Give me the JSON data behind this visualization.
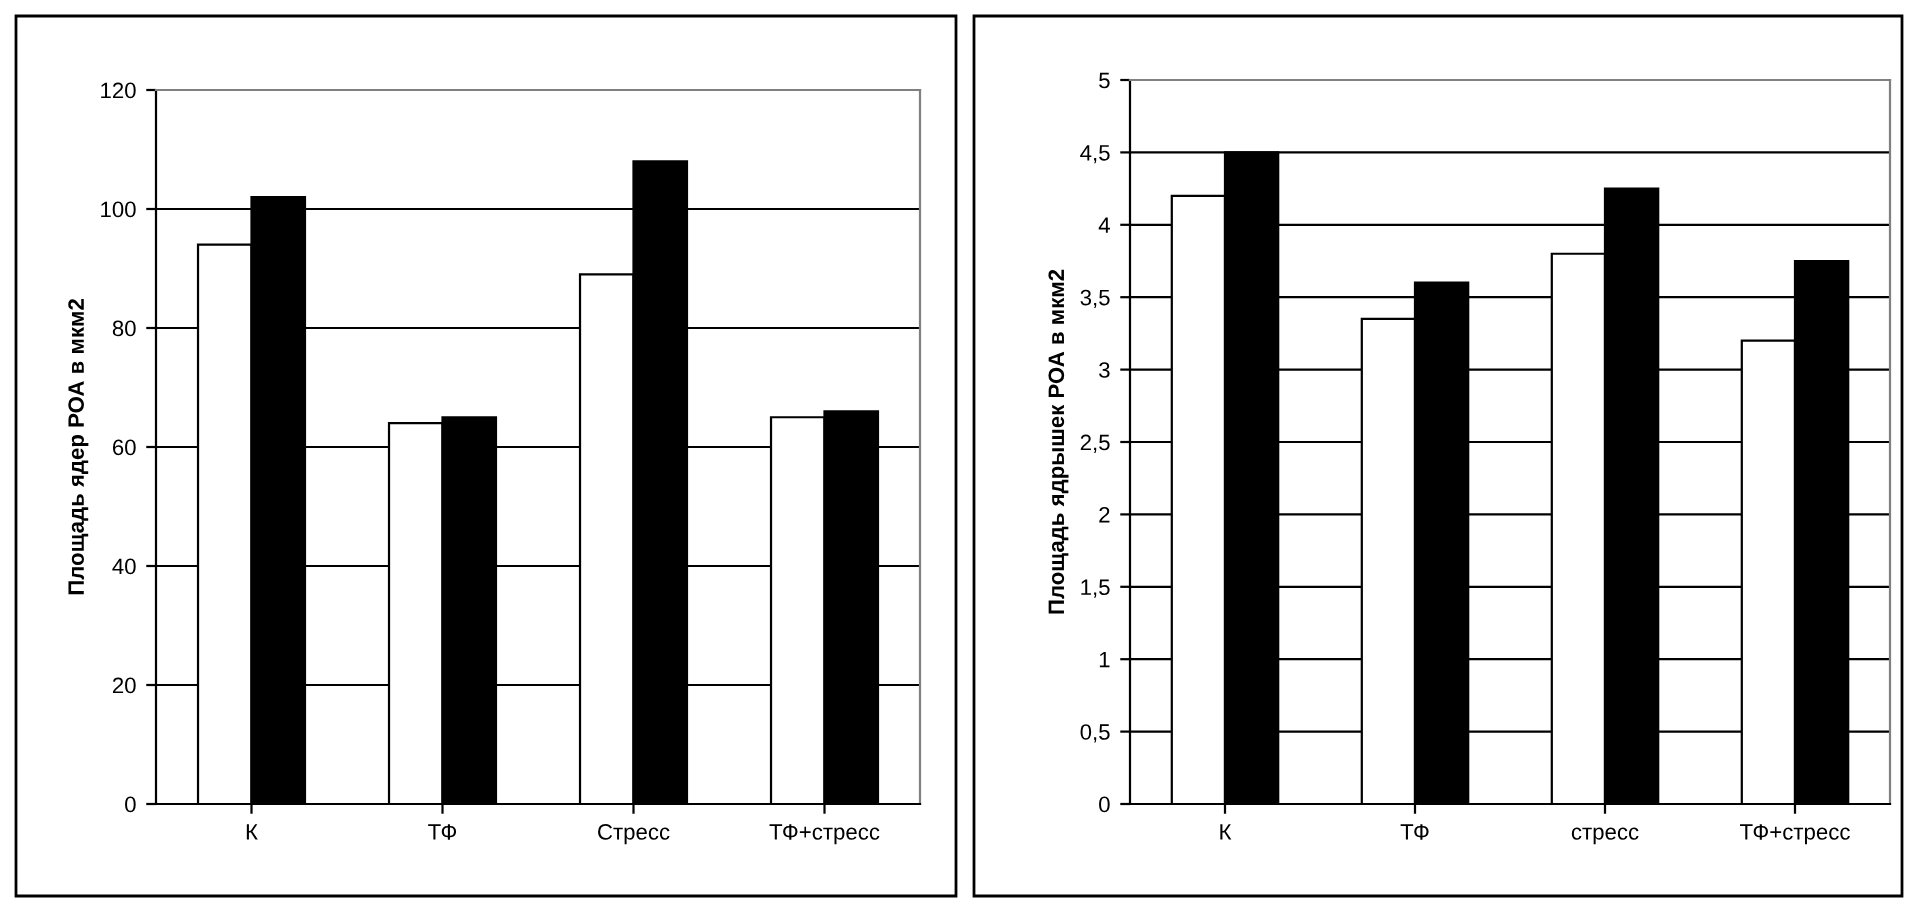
{
  "chart_data": [
    {
      "type": "bar",
      "ylabel": "Площадь ядер РОА в мкм2",
      "categories": [
        "К",
        "ТФ",
        "Стресс",
        "ТФ+стресс"
      ],
      "series": [
        {
          "color": "#ffffff",
          "values": [
            94,
            64,
            89,
            65
          ]
        },
        {
          "color": "#000000",
          "values": [
            102,
            65,
            108,
            66
          ]
        }
      ],
      "ylim": [
        0,
        120
      ],
      "yticks": [
        0,
        20,
        40,
        60,
        80,
        100,
        120
      ],
      "grid": "y"
    },
    {
      "type": "bar",
      "ylabel": "Площадь ядрышек РОА в мкм2",
      "categories": [
        "К",
        "ТФ",
        "стресс",
        "ТФ+стресс"
      ],
      "series": [
        {
          "color": "#ffffff",
          "values": [
            4.2,
            3.35,
            3.8,
            3.2
          ]
        },
        {
          "color": "#000000",
          "values": [
            4.5,
            3.6,
            4.25,
            3.75
          ]
        }
      ],
      "ylim": [
        0,
        5
      ],
      "yticks": [
        0,
        {
          "value": 0.5,
          "label": "0,5"
        },
        1,
        {
          "value": 1.5,
          "label": "1,5"
        },
        2,
        {
          "value": 2.5,
          "label": "2,5"
        },
        3,
        {
          "value": 3.5,
          "label": "3,5"
        },
        4,
        {
          "value": 4.5,
          "label": "4,5"
        },
        5
      ],
      "grid": "y"
    }
  ]
}
